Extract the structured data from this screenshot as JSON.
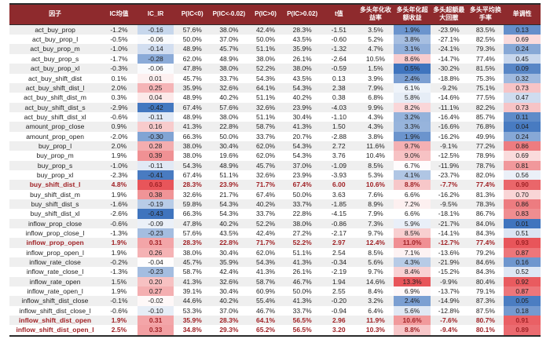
{
  "chart_data": {
    "type": "table",
    "columns": [
      "因子",
      "IC均值",
      "IC_IR",
      "P(IC<0)",
      "P(IC<-0.02)",
      "P(IC>0)",
      "P(IC>0.02)",
      "t值",
      "多头年化收益率",
      "多头年化超额收益",
      "多头超额最大回撤",
      "多头平均换手率",
      "单调性"
    ],
    "color_scale_columns": [
      2,
      9,
      12
    ],
    "highlight_rows": [
      16,
      22,
      30,
      31
    ],
    "rows": [
      [
        "act_buy_prop",
        "-1.2%",
        "-0.16",
        "57.6%",
        "38.0%",
        "42.4%",
        "28.3%",
        "-1.51",
        "3.5%",
        "1.9%",
        "-23.9%",
        "83.5%",
        "0.13"
      ],
      [
        "act_buy_prop_l",
        "-0.5%",
        "-0.06",
        "50.0%",
        "37.0%",
        "50.0%",
        "43.5%",
        "-0.60",
        "5.2%",
        "3.8%",
        "-27.1%",
        "82.5%",
        "0.69"
      ],
      [
        "act_buy_prop_m",
        "-1.0%",
        "-0.14",
        "48.9%",
        "45.7%",
        "51.1%",
        "35.9%",
        "-1.32",
        "4.7%",
        "3.1%",
        "-24.1%",
        "79.3%",
        "0.24"
      ],
      [
        "act_buy_prop_s",
        "-1.7%",
        "-0.28",
        "62.0%",
        "48.9%",
        "38.0%",
        "26.1%",
        "-2.64",
        "10.5%",
        "8.6%",
        "-14.7%",
        "77.4%",
        "0.45"
      ],
      [
        "act_buy_prop_xl",
        "-0.3%",
        "-0.06",
        "47.8%",
        "38.0%",
        "52.2%",
        "38.0%",
        "-0.59",
        "1.5%",
        "0.5%",
        "-30.2%",
        "81.5%",
        "0.09"
      ],
      [
        "act_buy_shift_dist",
        "0.1%",
        "0.01",
        "45.7%",
        "33.7%",
        "54.3%",
        "43.5%",
        "0.13",
        "3.9%",
        "2.4%",
        "-18.8%",
        "75.3%",
        "0.32"
      ],
      [
        "act_buy_shift_dist_l",
        "2.0%",
        "0.25",
        "35.9%",
        "32.6%",
        "64.1%",
        "54.3%",
        "2.38",
        "7.9%",
        "6.1%",
        "-9.2%",
        "75.1%",
        "0.73"
      ],
      [
        "act_buy_shift_dist_m",
        "0.3%",
        "0.04",
        "48.9%",
        "40.2%",
        "51.1%",
        "40.2%",
        "0.38",
        "6.8%",
        "5.8%",
        "-14.6%",
        "77.5%",
        "0.47"
      ],
      [
        "act_buy_shift_dist_s",
        "-2.9%",
        "-0.42",
        "67.4%",
        "57.6%",
        "32.6%",
        "23.9%",
        "-4.03",
        "9.9%",
        "8.2%",
        "-11.1%",
        "82.2%",
        "0.73"
      ],
      [
        "act_buy_shift_dist_xl",
        "-0.6%",
        "-0.11",
        "48.9%",
        "38.0%",
        "51.1%",
        "30.4%",
        "-1.10",
        "4.3%",
        "3.2%",
        "-16.4%",
        "85.7%",
        "0.11"
      ],
      [
        "amount_prop_close",
        "0.9%",
        "0.16",
        "41.3%",
        "22.8%",
        "58.7%",
        "41.3%",
        "1.50",
        "4.3%",
        "3.3%",
        "-16.6%",
        "76.8%",
        "0.04"
      ],
      [
        "amount_prop_open",
        "-2.0%",
        "-0.30",
        "66.3%",
        "50.0%",
        "33.7%",
        "20.7%",
        "-2.88",
        "3.8%",
        "1.9%",
        "-16.2%",
        "49.9%",
        "0.24"
      ],
      [
        "buy_prop_l",
        "2.0%",
        "0.28",
        "38.0%",
        "30.4%",
        "62.0%",
        "54.3%",
        "2.72",
        "11.6%",
        "9.7%",
        "-9.1%",
        "77.2%",
        "0.86"
      ],
      [
        "buy_prop_m",
        "1.9%",
        "0.39",
        "38.0%",
        "19.6%",
        "62.0%",
        "54.3%",
        "3.76",
        "10.4%",
        "9.0%",
        "-12.5%",
        "78.9%",
        "0.69"
      ],
      [
        "buy_prop_s",
        "-1.0%",
        "-0.11",
        "54.3%",
        "48.9%",
        "45.7%",
        "37.0%",
        "-1.09",
        "8.5%",
        "6.7%",
        "-11.9%",
        "78.7%",
        "0.81"
      ],
      [
        "buy_prop_xl",
        "-2.3%",
        "-0.41",
        "67.4%",
        "51.1%",
        "32.6%",
        "23.9%",
        "-3.93",
        "5.3%",
        "4.1%",
        "-23.7%",
        "82.0%",
        "0.56"
      ],
      [
        "buy_shift_dist_l",
        "4.8%",
        "0.63",
        "28.3%",
        "23.9%",
        "71.7%",
        "67.4%",
        "6.00",
        "10.6%",
        "8.8%",
        "-7.7%",
        "77.4%",
        "0.90"
      ],
      [
        "buy_shift_dist_m",
        "1.9%",
        "0.38",
        "32.6%",
        "21.7%",
        "67.4%",
        "50.0%",
        "3.63",
        "7.6%",
        "6.6%",
        "-16.2%",
        "81.3%",
        "0.70"
      ],
      [
        "buy_shift_dist_s",
        "-1.6%",
        "-0.19",
        "59.8%",
        "54.3%",
        "40.2%",
        "33.7%",
        "-1.85",
        "8.9%",
        "7.2%",
        "-9.5%",
        "78.3%",
        "0.86"
      ],
      [
        "buy_shift_dist_xl",
        "-2.6%",
        "-0.43",
        "66.3%",
        "54.3%",
        "33.7%",
        "22.8%",
        "-4.15",
        "7.9%",
        "6.6%",
        "-18.1%",
        "86.7%",
        "0.83"
      ],
      [
        "inflow_prop_close",
        "-0.6%",
        "-0.09",
        "47.8%",
        "40.2%",
        "52.2%",
        "38.0%",
        "-0.86",
        "7.3%",
        "5.9%",
        "-21.7%",
        "84.0%",
        "0.01"
      ],
      [
        "inflow_prop_close_l",
        "-1.3%",
        "-0.23",
        "57.6%",
        "43.5%",
        "42.4%",
        "27.2%",
        "-2.17",
        "9.7%",
        "8.5%",
        "-14.1%",
        "84.3%",
        "0.51"
      ],
      [
        "inflow_prop_open",
        "1.9%",
        "0.31",
        "28.3%",
        "22.8%",
        "71.7%",
        "52.2%",
        "2.97",
        "12.4%",
        "11.0%",
        "-12.7%",
        "77.4%",
        "0.93"
      ],
      [
        "inflow_prop_open_l",
        "1.9%",
        "0.26",
        "38.0%",
        "30.4%",
        "62.0%",
        "51.1%",
        "2.54",
        "8.5%",
        "7.1%",
        "-13.6%",
        "79.2%",
        "0.87"
      ],
      [
        "inflow_rate_close",
        "-0.2%",
        "-0.04",
        "45.7%",
        "35.9%",
        "54.3%",
        "41.3%",
        "-0.34",
        "5.6%",
        "4.3%",
        "-21.9%",
        "84.6%",
        "0.16"
      ],
      [
        "inflow_rate_close_l",
        "-1.3%",
        "-0.23",
        "58.7%",
        "42.4%",
        "41.3%",
        "26.1%",
        "-2.19",
        "9.7%",
        "8.4%",
        "-15.2%",
        "84.3%",
        "0.52"
      ],
      [
        "inflow_rate_open",
        "1.5%",
        "0.20",
        "41.3%",
        "32.6%",
        "58.7%",
        "46.7%",
        "1.94",
        "14.6%",
        "13.3%",
        "-9.9%",
        "80.4%",
        "0.92"
      ],
      [
        "inflow_rate_open_l",
        "1.9%",
        "0.27",
        "39.1%",
        "30.4%",
        "60.9%",
        "50.0%",
        "2.55",
        "8.4%",
        "6.9%",
        "-13.7%",
        "79.1%",
        "0.87"
      ],
      [
        "inflow_shift_dist_close",
        "-0.1%",
        "-0.02",
        "44.6%",
        "40.2%",
        "55.4%",
        "41.3%",
        "-0.20",
        "3.2%",
        "2.4%",
        "-14.9%",
        "87.3%",
        "0.05"
      ],
      [
        "inflow_shift_dist_close_l",
        "-0.6%",
        "-0.10",
        "53.3%",
        "37.0%",
        "46.7%",
        "33.7%",
        "-0.94",
        "6.4%",
        "5.6%",
        "-12.8%",
        "87.5%",
        "0.18"
      ],
      [
        "inflow_shift_dist_open",
        "1.9%",
        "0.31",
        "35.9%",
        "28.3%",
        "64.1%",
        "56.5%",
        "2.96",
        "11.9%",
        "10.6%",
        "-7.6%",
        "80.7%",
        "0.91"
      ],
      [
        "inflow_shift_dist_open_l",
        "2.5%",
        "0.33",
        "34.8%",
        "29.3%",
        "65.2%",
        "56.5%",
        "3.20",
        "10.3%",
        "8.8%",
        "-9.4%",
        "80.1%",
        "0.89"
      ]
    ]
  },
  "colors": {
    "header_bg": "#8E2A2D",
    "header_text": "#FFFFFF",
    "stripe_bg": "#EFEFEF",
    "text": "#1F1F1F",
    "highlight_text": "#A02226",
    "scale_red_max": "#E8555A",
    "scale_blue_max": "#3F74BE",
    "border": "#2A2A2A"
  }
}
